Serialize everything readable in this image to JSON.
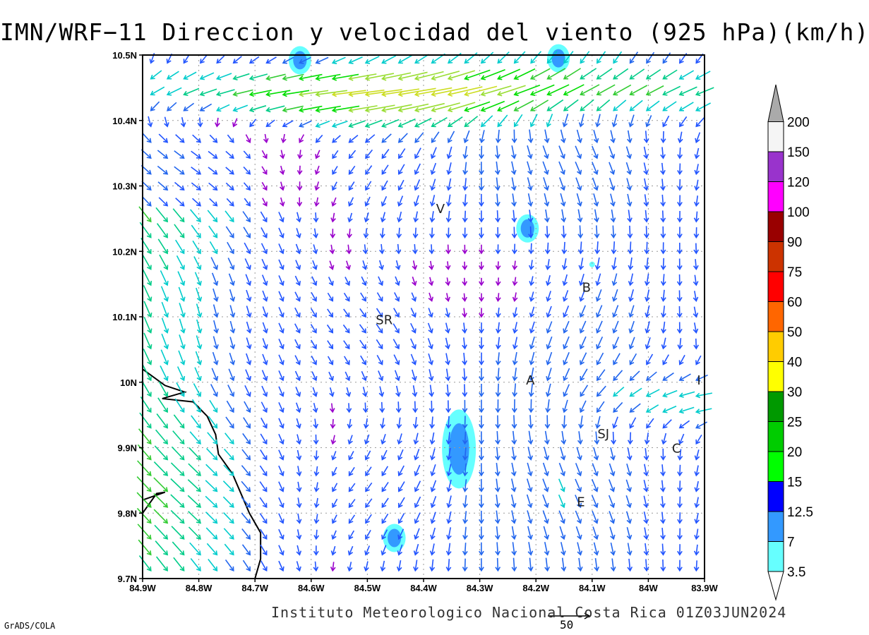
{
  "title": "IMN/WRF−11 Direccion y velocidad del viento (925 hPa)(km/h)",
  "credit": "Instituto Meteorologico Nacional Costa Rica 01Z03JUN2024",
  "software": "GrADS/COLA",
  "reference_vector": {
    "value": "50"
  },
  "map": {
    "lon_range": [
      -84.9,
      -83.9
    ],
    "lat_range": [
      9.7,
      10.5
    ],
    "grid": true,
    "x_ticks": [
      {
        "lon": -84.9,
        "label": "84.9W"
      },
      {
        "lon": -84.8,
        "label": "84.8W"
      },
      {
        "lon": -84.7,
        "label": "84.7W"
      },
      {
        "lon": -84.6,
        "label": "84.6W"
      },
      {
        "lon": -84.5,
        "label": "84.5W"
      },
      {
        "lon": -84.4,
        "label": "84.4W"
      },
      {
        "lon": -84.3,
        "label": "84.3W"
      },
      {
        "lon": -84.2,
        "label": "84.2W"
      },
      {
        "lon": -84.1,
        "label": "84.1W"
      },
      {
        "lon": -84.0,
        "label": "84W"
      },
      {
        "lon": -83.9,
        "label": "83.9W"
      }
    ],
    "y_ticks": [
      {
        "lat": 10.5,
        "label": "10.5N"
      },
      {
        "lat": 10.4,
        "label": "10.4N"
      },
      {
        "lat": 10.3,
        "label": "10.3N"
      },
      {
        "lat": 10.2,
        "label": "10.2N"
      },
      {
        "lat": 10.1,
        "label": "10.1N"
      },
      {
        "lat": 10.0,
        "label": "10N"
      },
      {
        "lat": 9.9,
        "label": "9.9N"
      },
      {
        "lat": 9.8,
        "label": "9.8N"
      },
      {
        "lat": 9.7,
        "label": "9.7N"
      }
    ],
    "places": [
      {
        "label": "V",
        "lon": -84.37,
        "lat": 10.265
      },
      {
        "label": "B",
        "lon": -84.11,
        "lat": 10.145
      },
      {
        "label": "SR",
        "lon": -84.47,
        "lat": 10.095
      },
      {
        "label": "A",
        "lon": -84.21,
        "lat": 10.003
      },
      {
        "label": "I",
        "lon": -83.91,
        "lat": 10.003
      },
      {
        "label": "SJ",
        "lon": -84.08,
        "lat": 9.921
      },
      {
        "label": "C",
        "lon": -83.95,
        "lat": 9.899
      },
      {
        "label": "E",
        "lon": -84.12,
        "lat": 9.817
      }
    ],
    "coastline": [
      [
        -84.9,
        10.02
      ],
      [
        -84.86,
        9.995
      ],
      [
        -84.825,
        9.985
      ],
      [
        -84.865,
        9.975
      ],
      [
        -84.81,
        9.97
      ],
      [
        -84.785,
        9.948
      ],
      [
        -84.77,
        9.92
      ],
      [
        -84.765,
        9.89
      ],
      [
        -84.74,
        9.86
      ],
      [
        -84.725,
        9.83
      ],
      [
        -84.71,
        9.8
      ],
      [
        -84.69,
        9.77
      ],
      [
        -84.69,
        9.73
      ],
      [
        -84.7,
        9.7
      ]
    ],
    "coastline_peninsula": [
      [
        -84.9,
        9.8
      ],
      [
        -84.875,
        9.83
      ],
      [
        -84.86,
        9.832
      ],
      [
        -84.9,
        9.82
      ]
    ],
    "shaded_areas": [
      {
        "lon": -84.16,
        "lat": 10.495,
        "speed": "7"
      },
      {
        "lon": -84.62,
        "lat": 10.492,
        "speed": "7"
      },
      {
        "lon": -84.215,
        "lat": 10.235,
        "speed": "7"
      },
      {
        "lon": -84.337,
        "lat": 9.898,
        "speed": "12.5"
      },
      {
        "lon": -84.452,
        "lat": 9.762,
        "speed": "7"
      },
      {
        "lon": -84.1,
        "lat": 10.18,
        "speed": "3.5"
      }
    ]
  },
  "colorbar": {
    "levels": [
      "3.5",
      "7",
      "12.5",
      "15",
      "20",
      "25",
      "30",
      "40",
      "50",
      "60",
      "75",
      "90",
      "100",
      "120",
      "150",
      "200"
    ],
    "colors": [
      "#66ffff",
      "#3399ff",
      "#0000ff",
      "#00ff00",
      "#00cc00",
      "#009900",
      "#ffff00",
      "#ffcc00",
      "#ff6600",
      "#ff0000",
      "#cc3300",
      "#990000",
      "#ff00ff",
      "#9933cc",
      "#f5f5f5",
      "#aaaaaa"
    ]
  }
}
